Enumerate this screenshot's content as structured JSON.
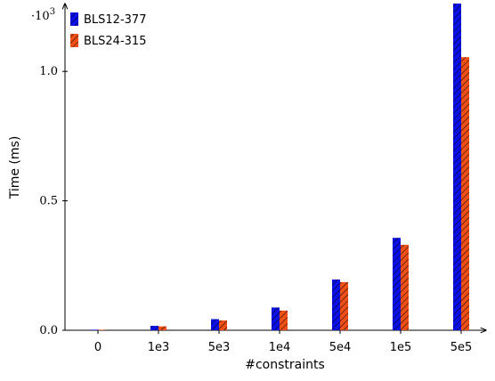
{
  "chart_data": {
    "type": "bar",
    "xlabel": "#constraints",
    "ylabel": "Time (ms)",
    "y_scale_note": "·10^3",
    "categories": [
      "0",
      "1e3",
      "5e3",
      "1e4",
      "5e4",
      "1e5",
      "5e5"
    ],
    "series": [
      {
        "name": "BLS12-377",
        "color": "#0b10e6",
        "values": [
          0.3,
          17,
          43,
          88,
          196,
          357,
          1262
        ]
      },
      {
        "name": "BLS24-315",
        "color": "#ee4f15",
        "values": [
          0.4,
          15,
          38,
          76,
          186,
          330,
          1055
        ]
      }
    ],
    "ylim": [
      0,
      1262
    ],
    "yticks": [
      {
        "value": 0,
        "label": "0.0"
      },
      {
        "value": 500,
        "label": "0.5"
      },
      {
        "value": 1000,
        "label": "1.0"
      }
    ],
    "legend_position": "top-left",
    "grid": false
  }
}
